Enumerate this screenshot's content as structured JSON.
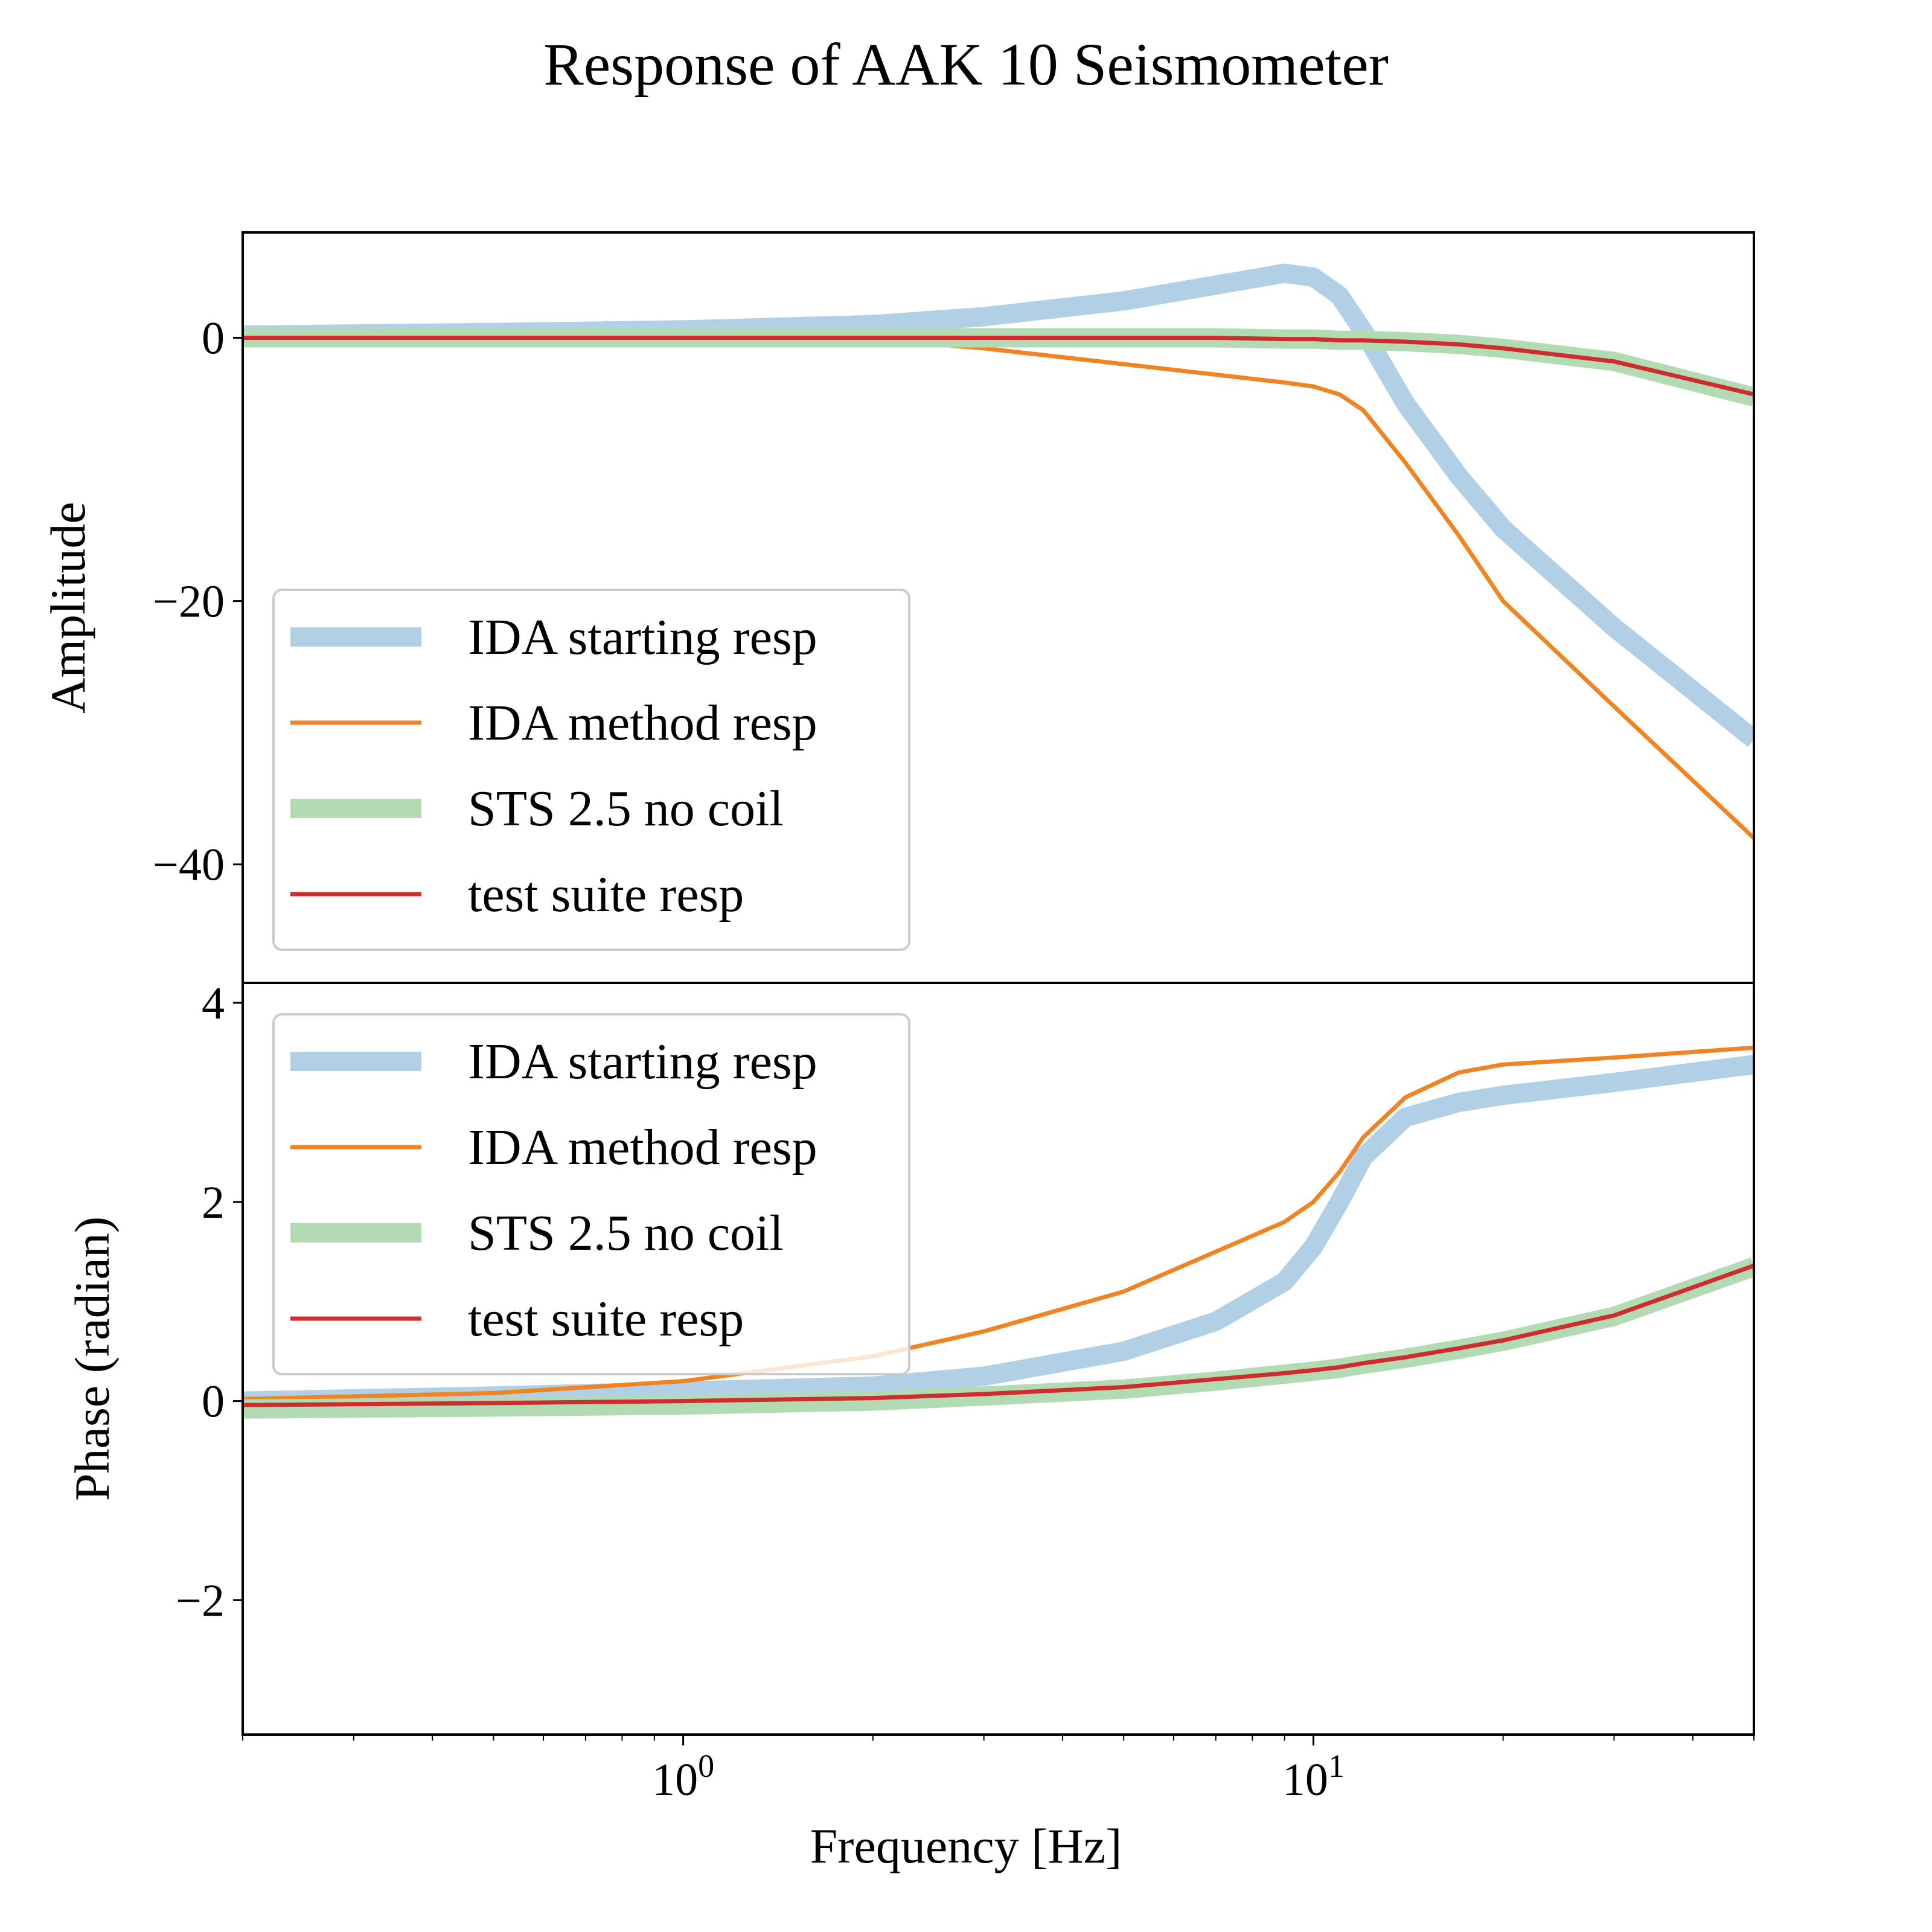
{
  "chart_data": {
    "title": "Response of AAK 10 Seismometer",
    "xlabel": "Frequency [Hz]",
    "xscale": "log",
    "xlim": [
      0.2,
      50
    ],
    "x_ticks": [
      {
        "value": 1,
        "base": "10",
        "exp": "0"
      },
      {
        "value": 10,
        "base": "10",
        "exp": "1"
      }
    ],
    "series_style": [
      {
        "name": "IDA starting resp",
        "color": "#b1cfe5",
        "width": "thick"
      },
      {
        "name": "IDA method resp",
        "color": "#f08422",
        "width": "thin"
      },
      {
        "name": "STS 2.5 no coil",
        "color": "#b3dbb3",
        "width": "thick"
      },
      {
        "name": "test suite resp",
        "color": "#cf2d2d",
        "width": "thin"
      }
    ],
    "panels": [
      {
        "id": "amplitude",
        "type": "line",
        "ylabel": "Amplitude",
        "ylim": [
          -49,
          8
        ],
        "yticks": [
          0,
          -20,
          -40
        ],
        "ytick_labels": [
          "0",
          "−20",
          "−40"
        ],
        "legend": "lower-left",
        "x": [
          0.2,
          0.5,
          1,
          2,
          3,
          5,
          7,
          9,
          10,
          11,
          12,
          14,
          17,
          20,
          30,
          50
        ],
        "series": [
          {
            "name": "IDA starting resp",
            "values": [
              0.2,
              0.4,
              0.6,
              1.0,
              1.6,
              2.8,
              4.0,
              4.9,
              4.6,
              3.2,
              0.5,
              -5.0,
              -10.5,
              -14.5,
              -22.0,
              -30.5
            ]
          },
          {
            "name": "IDA method resp",
            "values": [
              0.0,
              0.0,
              0.0,
              -0.1,
              -0.8,
              -2.0,
              -2.8,
              -3.4,
              -3.7,
              -4.3,
              -5.5,
              -9.5,
              -15.0,
              -20.0,
              -28.0,
              -38.0
            ]
          },
          {
            "name": "STS 2.5 no coil",
            "values": [
              0.0,
              0.0,
              0.0,
              0.0,
              0.0,
              0.0,
              0.0,
              -0.1,
              -0.1,
              -0.2,
              -0.2,
              -0.3,
              -0.5,
              -0.8,
              -1.8,
              -4.5
            ]
          },
          {
            "name": "test suite resp",
            "values": [
              0.0,
              0.0,
              0.0,
              0.0,
              0.0,
              0.0,
              0.0,
              -0.1,
              -0.1,
              -0.2,
              -0.2,
              -0.3,
              -0.5,
              -0.8,
              -1.8,
              -4.3
            ]
          }
        ]
      },
      {
        "id": "phase",
        "type": "line",
        "ylabel": "Phase (radian)",
        "ylim": [
          -3.35,
          4.2
        ],
        "yticks": [
          4,
          2,
          0,
          -2
        ],
        "ytick_labels": [
          "4",
          "2",
          "0",
          "−2"
        ],
        "legend": "upper-left",
        "x": [
          0.2,
          0.5,
          1,
          2,
          3,
          5,
          7,
          9,
          10,
          11,
          12,
          14,
          17,
          20,
          30,
          50
        ],
        "series": [
          {
            "name": "IDA starting resp",
            "values": [
              0.0,
              0.05,
              0.1,
              0.15,
              0.25,
              0.5,
              0.8,
              1.2,
              1.55,
              2.0,
              2.45,
              2.85,
              3.0,
              3.07,
              3.2,
              3.38
            ]
          },
          {
            "name": "IDA method resp",
            "values": [
              0.02,
              0.08,
              0.2,
              0.45,
              0.7,
              1.1,
              1.5,
              1.8,
              2.0,
              2.3,
              2.65,
              3.05,
              3.3,
              3.38,
              3.45,
              3.55
            ]
          },
          {
            "name": "STS 2.5 no coil",
            "values": [
              -0.08,
              -0.06,
              -0.04,
              0.0,
              0.05,
              0.12,
              0.2,
              0.27,
              0.3,
              0.33,
              0.37,
              0.43,
              0.52,
              0.6,
              0.85,
              1.35
            ]
          },
          {
            "name": "test suite resp",
            "values": [
              -0.04,
              -0.02,
              0.0,
              0.03,
              0.07,
              0.14,
              0.22,
              0.28,
              0.31,
              0.34,
              0.38,
              0.44,
              0.53,
              0.61,
              0.86,
              1.36
            ]
          }
        ]
      }
    ]
  }
}
